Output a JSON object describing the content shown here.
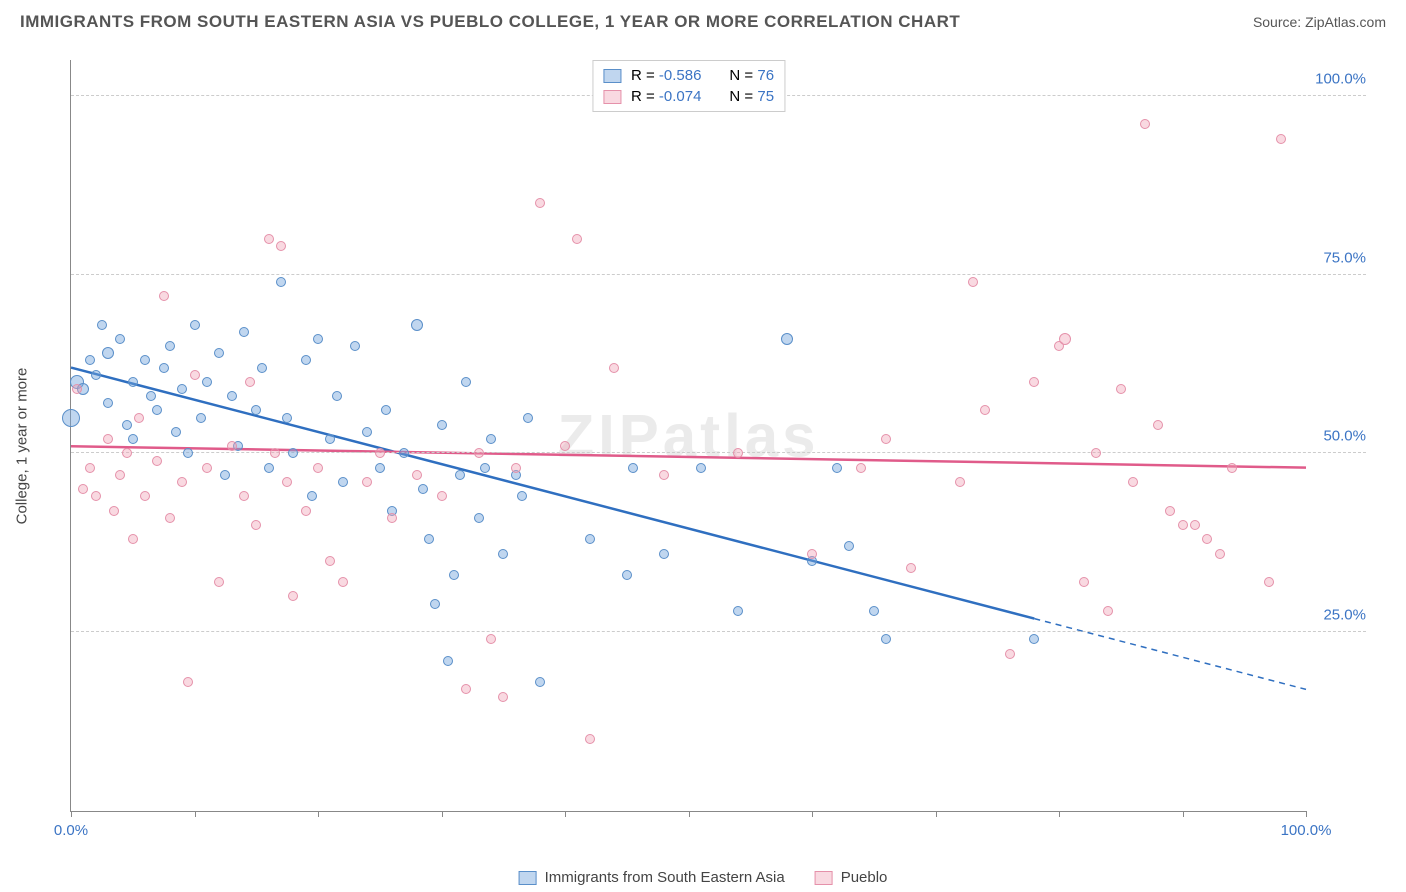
{
  "header": {
    "title": "IMMIGRANTS FROM SOUTH EASTERN ASIA VS PUEBLO COLLEGE, 1 YEAR OR MORE CORRELATION CHART",
    "source_prefix": "Source: ",
    "source_link": "ZipAtlas.com"
  },
  "watermark": "ZIPatlas",
  "chart": {
    "type": "scatter",
    "ylabel": "College, 1 year or more",
    "xlim": [
      0,
      100
    ],
    "ylim": [
      0,
      105
    ],
    "xticks": [
      0,
      10,
      20,
      30,
      40,
      50,
      60,
      70,
      80,
      90,
      100
    ],
    "xtick_labels": {
      "0": "0.0%",
      "100": "100.0%"
    },
    "yticks": [
      25,
      50,
      75,
      100
    ],
    "ytick_labels": {
      "25": "25.0%",
      "50": "50.0%",
      "75": "75.0%",
      "100": "100.0%"
    },
    "xtick_label_color": "#3b74c4",
    "ytick_label_color": "#3b74c4",
    "grid_color": "#cccccc",
    "series": [
      {
        "name": "Immigrants from South Eastern Asia",
        "fill": "rgba(115,165,220,0.45)",
        "stroke": "#5a8fc9",
        "trend_color": "#2f6fc0",
        "trend": {
          "x0": 0,
          "y0": 62,
          "x1": 100,
          "y1": 17,
          "solid_until_x": 78
        },
        "R": "-0.586",
        "N": "76",
        "points": [
          [
            0,
            55,
            18
          ],
          [
            0.5,
            60,
            14
          ],
          [
            1,
            59,
            12
          ],
          [
            1.5,
            63,
            10
          ],
          [
            2,
            61,
            10
          ],
          [
            2.5,
            68,
            10
          ],
          [
            3,
            64,
            12
          ],
          [
            3,
            57,
            10
          ],
          [
            4,
            66,
            10
          ],
          [
            4.5,
            54,
            10
          ],
          [
            5,
            60,
            10
          ],
          [
            5,
            52,
            10
          ],
          [
            6,
            63,
            10
          ],
          [
            6.5,
            58,
            10
          ],
          [
            7,
            56,
            10
          ],
          [
            7.5,
            62,
            10
          ],
          [
            8,
            65,
            10
          ],
          [
            8.5,
            53,
            10
          ],
          [
            9,
            59,
            10
          ],
          [
            9.5,
            50,
            10
          ],
          [
            10,
            68,
            10
          ],
          [
            10.5,
            55,
            10
          ],
          [
            11,
            60,
            10
          ],
          [
            12,
            64,
            10
          ],
          [
            12.5,
            47,
            10
          ],
          [
            13,
            58,
            10
          ],
          [
            13.5,
            51,
            10
          ],
          [
            14,
            67,
            10
          ],
          [
            15,
            56,
            10
          ],
          [
            15.5,
            62,
            10
          ],
          [
            16,
            48,
            10
          ],
          [
            17,
            74,
            10
          ],
          [
            17.5,
            55,
            10
          ],
          [
            18,
            50,
            10
          ],
          [
            19,
            63,
            10
          ],
          [
            19.5,
            44,
            10
          ],
          [
            20,
            66,
            10
          ],
          [
            21,
            52,
            10
          ],
          [
            21.5,
            58,
            10
          ],
          [
            22,
            46,
            10
          ],
          [
            23,
            65,
            10
          ],
          [
            24,
            53,
            10
          ],
          [
            25,
            48,
            10
          ],
          [
            25.5,
            56,
            10
          ],
          [
            26,
            42,
            10
          ],
          [
            27,
            50,
            10
          ],
          [
            28,
            68,
            12
          ],
          [
            28.5,
            45,
            10
          ],
          [
            29,
            38,
            10
          ],
          [
            29.5,
            29,
            10
          ],
          [
            30,
            54,
            10
          ],
          [
            30.5,
            21,
            10
          ],
          [
            31,
            33,
            10
          ],
          [
            31.5,
            47,
            10
          ],
          [
            32,
            60,
            10
          ],
          [
            33,
            41,
            10
          ],
          [
            33.5,
            48,
            10
          ],
          [
            34,
            52,
            10
          ],
          [
            35,
            36,
            10
          ],
          [
            36,
            47,
            10
          ],
          [
            36.5,
            44,
            10
          ],
          [
            37,
            55,
            10
          ],
          [
            38,
            18,
            10
          ],
          [
            42,
            38,
            10
          ],
          [
            45,
            33,
            10
          ],
          [
            45.5,
            48,
            10
          ],
          [
            48,
            36,
            10
          ],
          [
            51,
            48,
            10
          ],
          [
            54,
            28,
            10
          ],
          [
            58,
            66,
            12
          ],
          [
            60,
            35,
            10
          ],
          [
            62,
            48,
            10
          ],
          [
            63,
            37,
            10
          ],
          [
            65,
            28,
            10
          ],
          [
            66,
            24,
            10
          ],
          [
            78,
            24,
            10
          ]
        ]
      },
      {
        "name": "Pueblo",
        "fill": "rgba(240,160,180,0.40)",
        "stroke": "#e591aa",
        "trend_color": "#e05b8a",
        "trend": {
          "x0": 0,
          "y0": 51,
          "x1": 100,
          "y1": 48,
          "solid_until_x": 100
        },
        "R": "-0.074",
        "N": "75",
        "points": [
          [
            0.5,
            59,
            10
          ],
          [
            1,
            45,
            10
          ],
          [
            1.5,
            48,
            10
          ],
          [
            2,
            44,
            10
          ],
          [
            3,
            52,
            10
          ],
          [
            3.5,
            42,
            10
          ],
          [
            4,
            47,
            10
          ],
          [
            4.5,
            50,
            10
          ],
          [
            5,
            38,
            10
          ],
          [
            5.5,
            55,
            10
          ],
          [
            6,
            44,
            10
          ],
          [
            7,
            49,
            10
          ],
          [
            7.5,
            72,
            10
          ],
          [
            8,
            41,
            10
          ],
          [
            9,
            46,
            10
          ],
          [
            9.5,
            18,
            10
          ],
          [
            10,
            61,
            10
          ],
          [
            11,
            48,
            10
          ],
          [
            12,
            32,
            10
          ],
          [
            13,
            51,
            10
          ],
          [
            14,
            44,
            10
          ],
          [
            14.5,
            60,
            10
          ],
          [
            15,
            40,
            10
          ],
          [
            16,
            80,
            10
          ],
          [
            16.5,
            50,
            10
          ],
          [
            17,
            79,
            10
          ],
          [
            17.5,
            46,
            10
          ],
          [
            18,
            30,
            10
          ],
          [
            19,
            42,
            10
          ],
          [
            20,
            48,
            10
          ],
          [
            21,
            35,
            10
          ],
          [
            22,
            32,
            10
          ],
          [
            24,
            46,
            10
          ],
          [
            25,
            50,
            10
          ],
          [
            26,
            41,
            10
          ],
          [
            28,
            47,
            10
          ],
          [
            30,
            44,
            10
          ],
          [
            32,
            17,
            10
          ],
          [
            33,
            50,
            10
          ],
          [
            34,
            24,
            10
          ],
          [
            35,
            16,
            10
          ],
          [
            36,
            48,
            10
          ],
          [
            38,
            85,
            10
          ],
          [
            40,
            51,
            10
          ],
          [
            41,
            80,
            10
          ],
          [
            42,
            10,
            10
          ],
          [
            44,
            62,
            10
          ],
          [
            48,
            47,
            10
          ],
          [
            54,
            50,
            10
          ],
          [
            60,
            36,
            10
          ],
          [
            64,
            48,
            10
          ],
          [
            66,
            52,
            10
          ],
          [
            68,
            34,
            10
          ],
          [
            72,
            46,
            10
          ],
          [
            73,
            74,
            10
          ],
          [
            74,
            56,
            10
          ],
          [
            76,
            22,
            10
          ],
          [
            78,
            60,
            10
          ],
          [
            80,
            65,
            10
          ],
          [
            80.5,
            66,
            12
          ],
          [
            82,
            32,
            10
          ],
          [
            83,
            50,
            10
          ],
          [
            84,
            28,
            10
          ],
          [
            85,
            59,
            10
          ],
          [
            86,
            46,
            10
          ],
          [
            87,
            96,
            10
          ],
          [
            88,
            54,
            10
          ],
          [
            89,
            42,
            10
          ],
          [
            90,
            40,
            10
          ],
          [
            91,
            40,
            10
          ],
          [
            92,
            38,
            10
          ],
          [
            93,
            36,
            10
          ],
          [
            94,
            48,
            10
          ],
          [
            97,
            32,
            10
          ],
          [
            98,
            94,
            10
          ]
        ]
      }
    ],
    "legend_top": {
      "R_label": "R = ",
      "N_label": "N = ",
      "value_color": "#3b74c4"
    },
    "colors": {
      "axis": "#888888",
      "text": "#444444"
    }
  }
}
